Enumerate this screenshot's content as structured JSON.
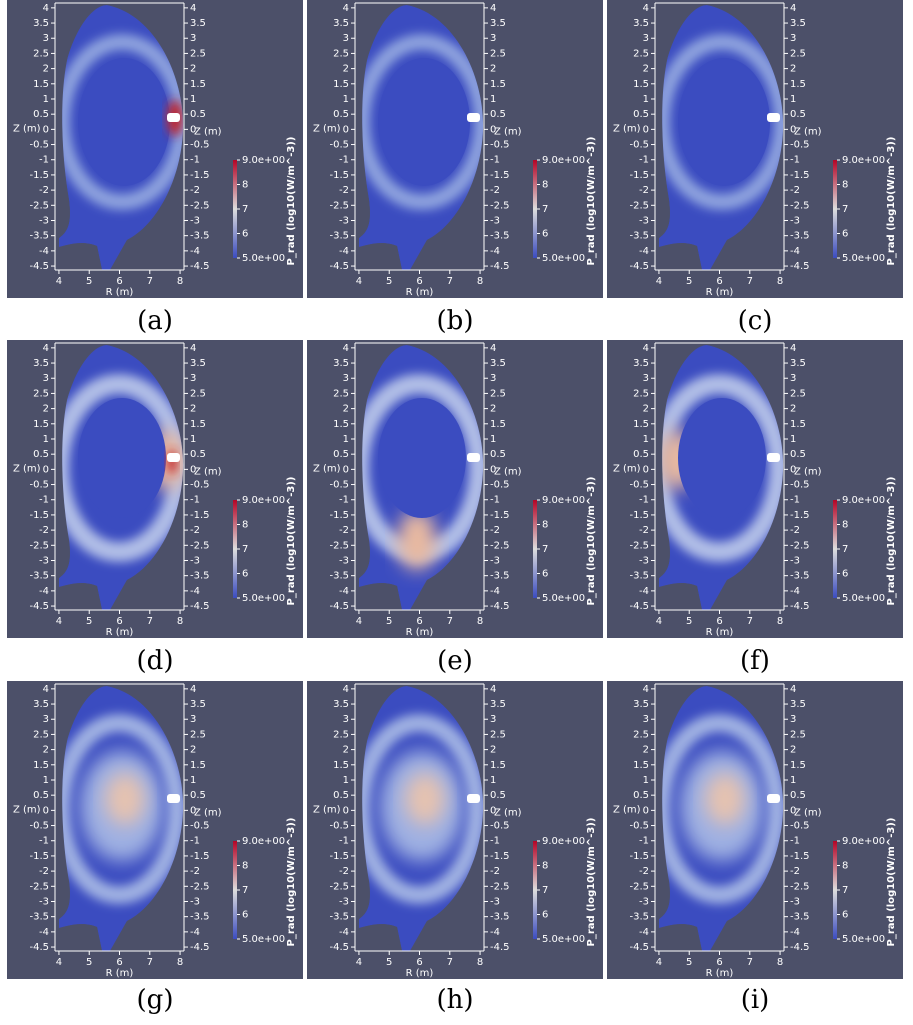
{
  "chart_data": {
    "type": "image-grid",
    "xlabel": "R (m)",
    "ylabel": "Z (m)",
    "xlim": [
      3.87,
      8.13
    ],
    "ylim": [
      -4.63,
      4.16
    ],
    "xticks": [
      4,
      5,
      6,
      7,
      8
    ],
    "yticks": [
      4,
      3.5,
      3,
      2.5,
      2,
      1.5,
      1,
      0.5,
      0,
      -0.5,
      -1,
      -1.5,
      -2,
      -2.5,
      -3,
      -3.5,
      -4,
      -4.5
    ],
    "colorbar": {
      "title": "P_rad (log10(W/m^-3))",
      "range": [
        5,
        9
      ],
      "colors": [
        "#3b4cc0",
        "#dddddd",
        "#b40426"
      ],
      "ticks": [
        {
          "value": 9,
          "label": "9.0e+00"
        },
        8,
        7,
        6,
        {
          "value": 5,
          "label": "5.0e+00"
        }
      ]
    },
    "background": "#4c5069",
    "panels": [
      {
        "caption": "(a)"
      },
      {
        "caption": "(b)"
      },
      {
        "caption": "(c)"
      },
      {
        "caption": "(d)"
      },
      {
        "caption": "(e)"
      },
      {
        "caption": "(f)"
      },
      {
        "caption": "(g)"
      },
      {
        "caption": "(h)"
      },
      {
        "caption": "(i)"
      }
    ]
  }
}
